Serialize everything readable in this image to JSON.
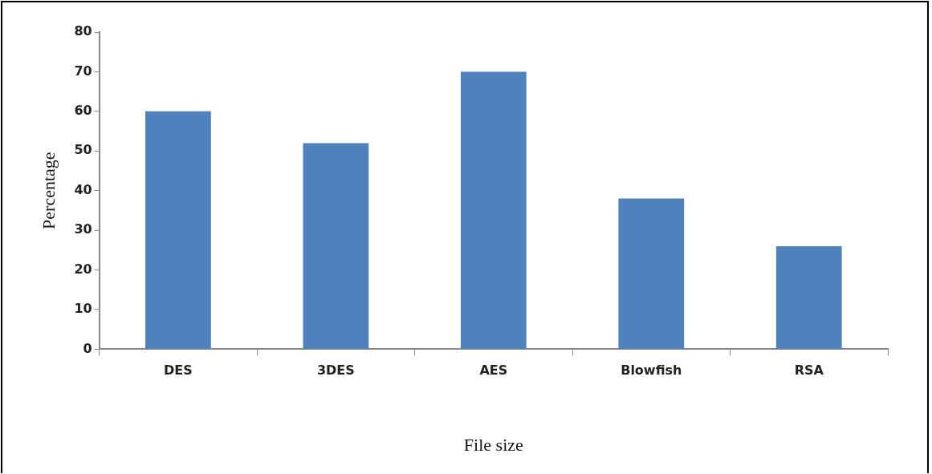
{
  "chart_data": {
    "type": "bar",
    "xlabel": "File size",
    "ylabel": "Percentage",
    "categories": [
      "DES",
      "3DES",
      "AES",
      "Blowfish",
      "RSA"
    ],
    "values": [
      60,
      52,
      70,
      38,
      26
    ],
    "color": "#4f81bd",
    "ylim": [
      0,
      80
    ],
    "yticks": [
      0,
      10,
      20,
      30,
      40,
      50,
      60,
      70,
      80
    ],
    "grid": false,
    "legend": false
  }
}
